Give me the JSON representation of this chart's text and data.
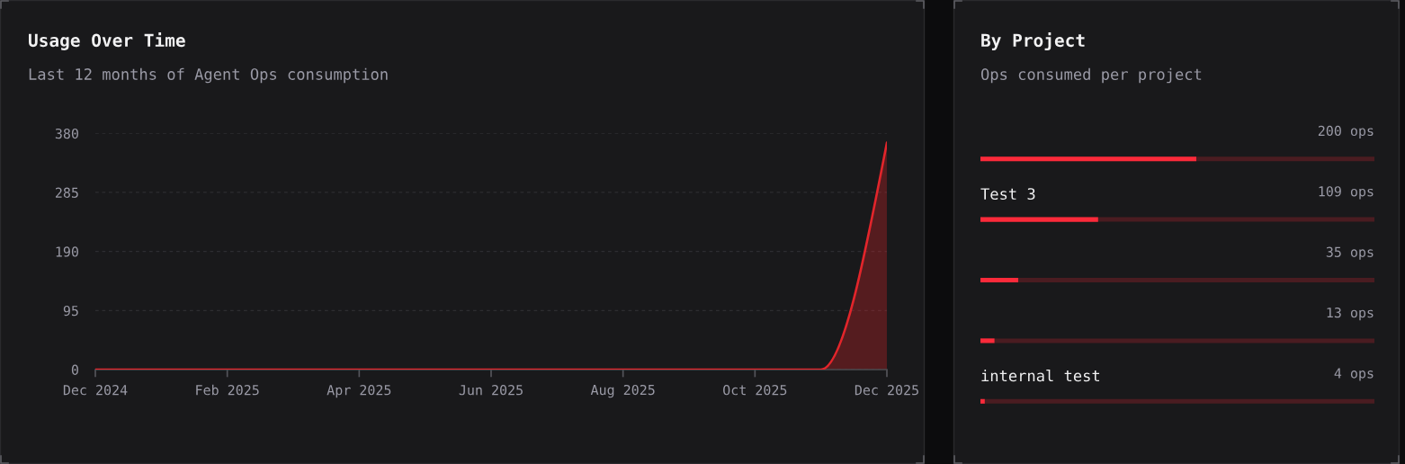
{
  "chart_data": [
    {
      "type": "area",
      "title": "Usage Over Time",
      "subtitle": "Last 12 months of Agent Ops consumption",
      "categories": [
        "Dec 2024",
        null,
        "Feb 2025",
        null,
        "Apr 2025",
        null,
        "Jun 2025",
        null,
        "Aug 2025",
        null,
        "Oct 2025",
        null,
        "Dec 2025"
      ],
      "values": [
        0,
        0,
        0,
        0,
        0,
        0,
        0,
        0,
        0,
        0,
        0,
        0,
        365
      ],
      "color": "#e2252b",
      "ylim": [
        0,
        380
      ],
      "yticks": [
        0,
        95,
        190,
        285,
        380
      ],
      "grid": "y"
    },
    {
      "type": "bar",
      "orientation": "horizontal",
      "title": "By Project",
      "subtitle": "Ops consumed per project",
      "categories": [
        null,
        "Test 3",
        null,
        null,
        "internal test"
      ],
      "values": [
        200,
        109,
        35,
        13,
        4
      ],
      "value_labels": [
        "200 ops",
        "109 ops",
        "35 ops",
        "13 ops",
        "4 ops"
      ],
      "color": "#fb2a3a",
      "xlim": [
        0,
        365
      ],
      "tick_labels": "y",
      "grid": "y"
    }
  ]
}
